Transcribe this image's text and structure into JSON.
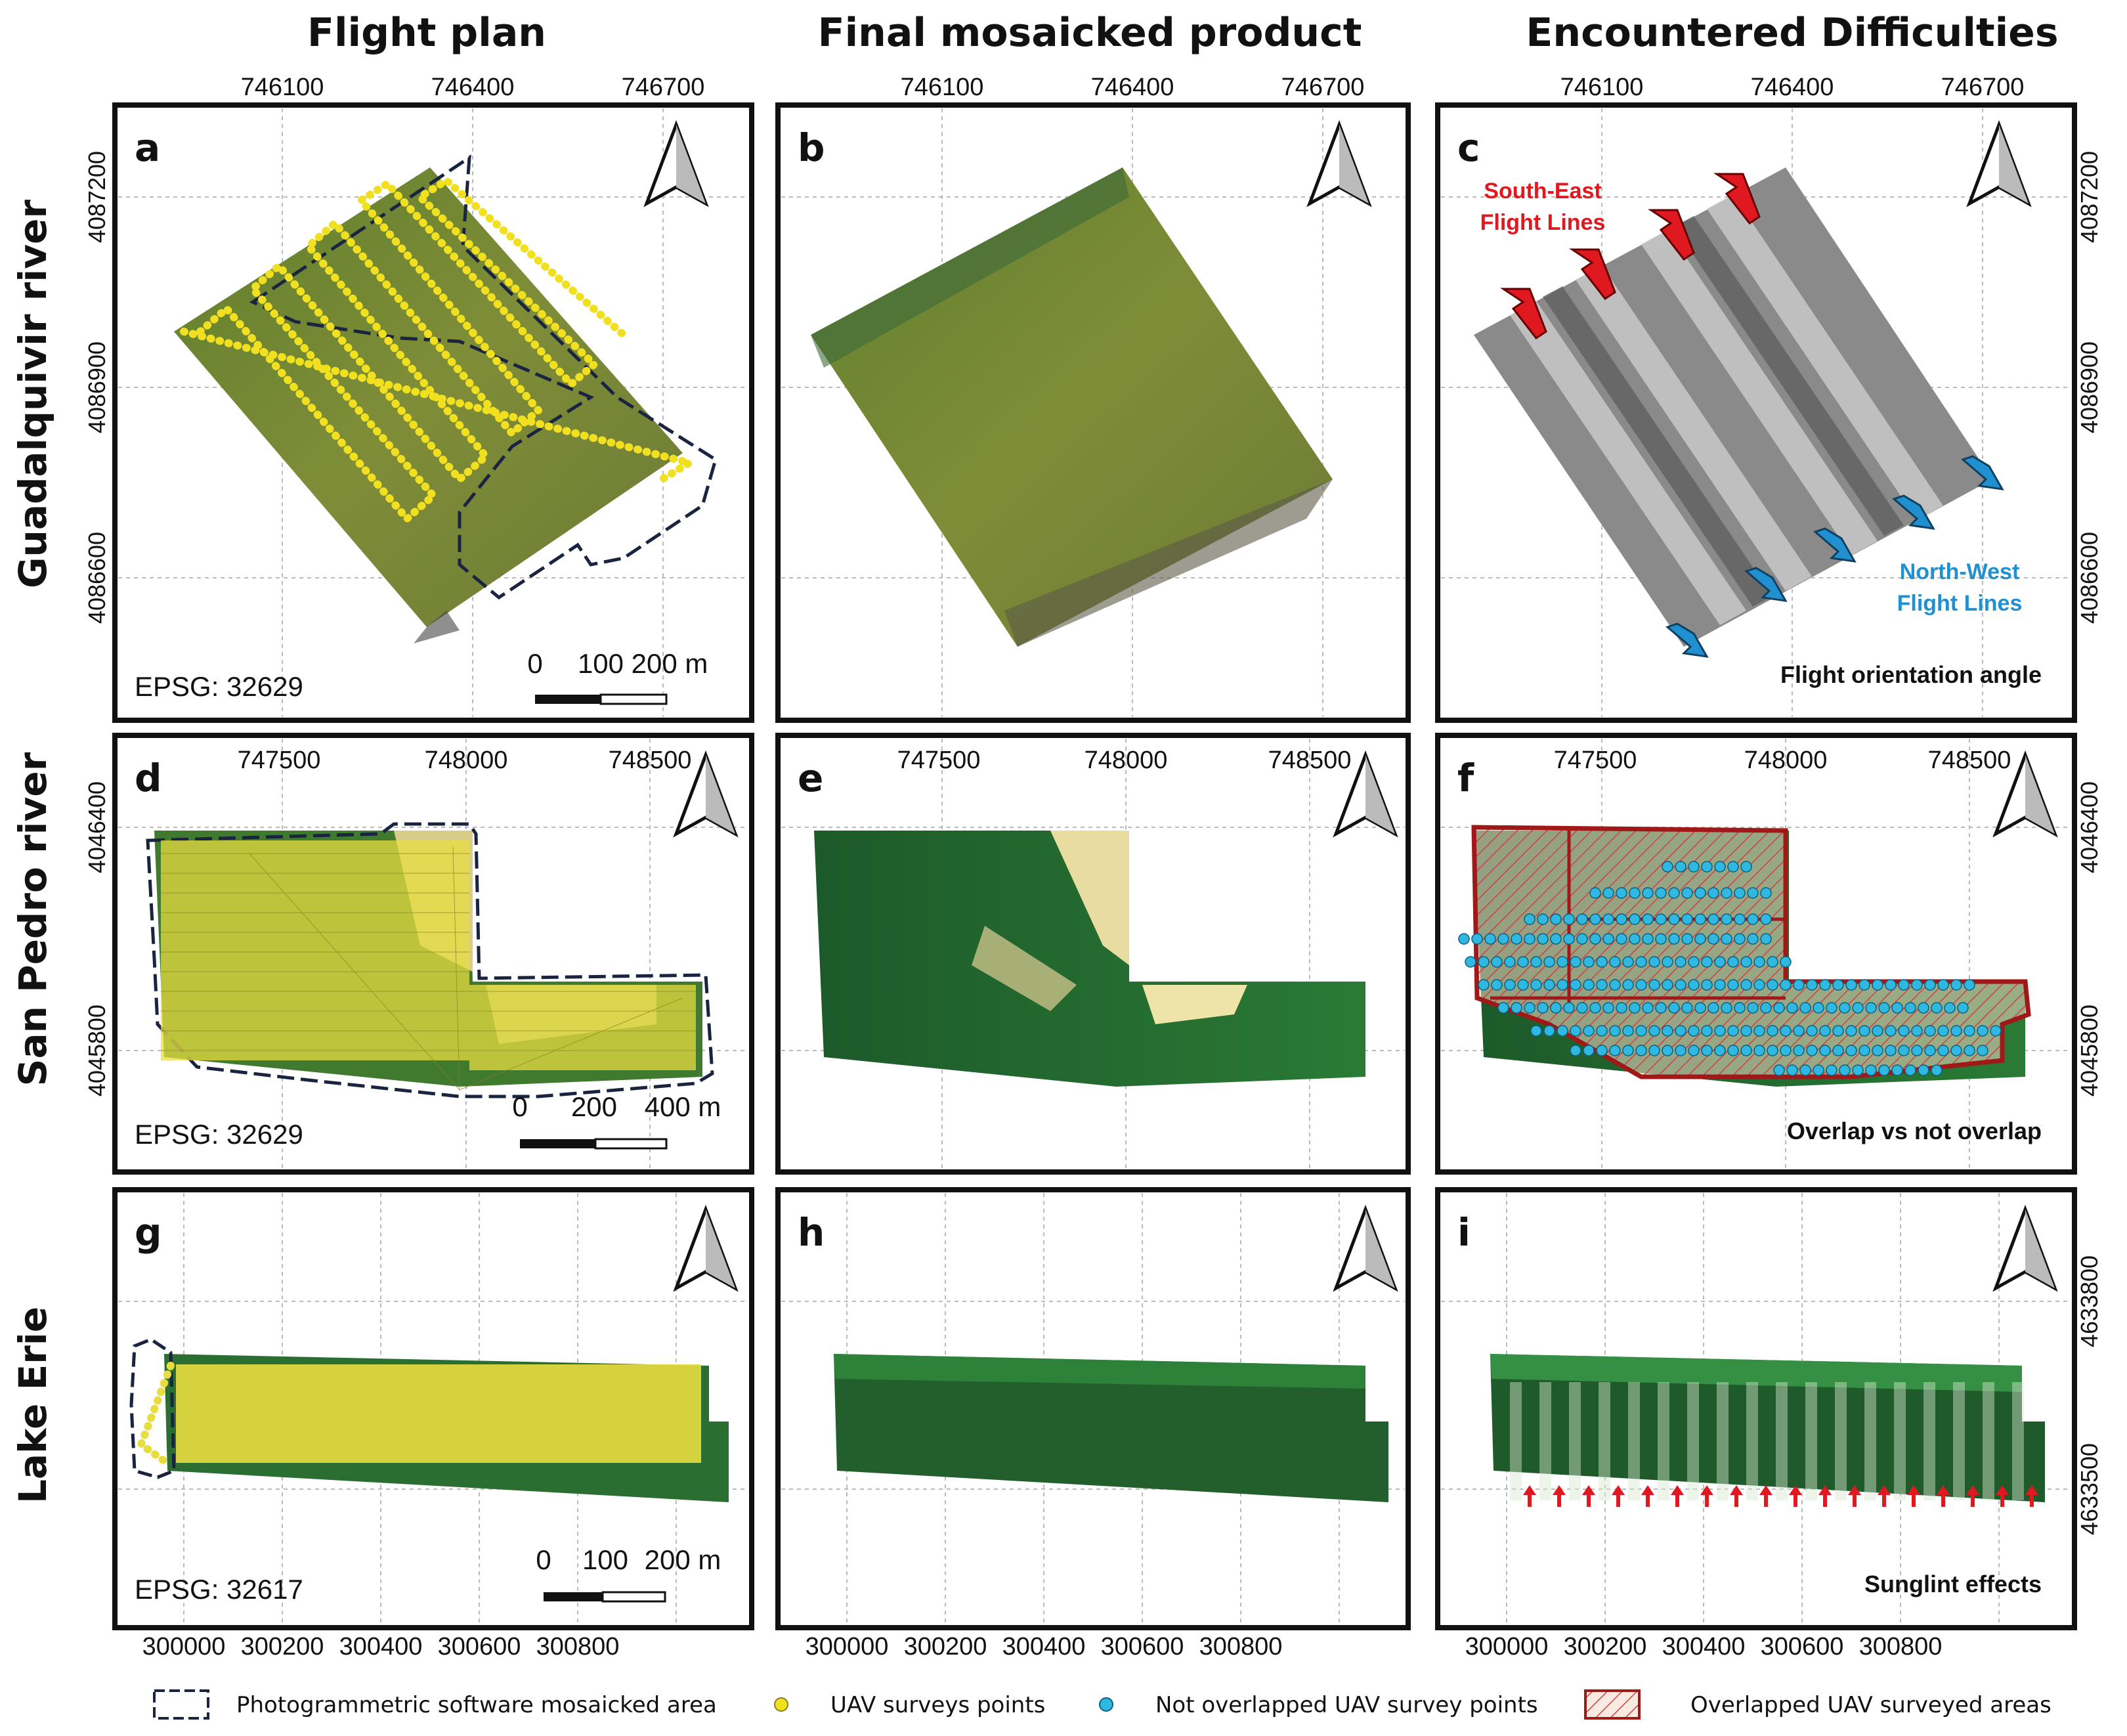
{
  "columns": [
    "Flight plan",
    "Final mosaicked product",
    "Encountered Difficulties"
  ],
  "rows": [
    "Guadalquivir river",
    "San Pedro river",
    "Lake Erie"
  ],
  "panel_letters": [
    "a",
    "b",
    "c",
    "d",
    "e",
    "f",
    "g",
    "h",
    "i"
  ],
  "epsg": [
    "EPSG: 32629",
    "EPSG: 32629",
    "EPSG: 32617"
  ],
  "row1": {
    "x_ticks": [
      "746100",
      "746400",
      "746700"
    ],
    "y_ticks": [
      "4087200",
      "4086900",
      "4086600"
    ],
    "scale": [
      "0",
      "100",
      "200 m"
    ]
  },
  "row2": {
    "x_ticks": [
      "747500",
      "748000",
      "748500"
    ],
    "y_ticks": [
      "4046400",
      "4045800"
    ],
    "scale": [
      "0",
      "200",
      "400 m"
    ]
  },
  "row3": {
    "x_ticks": [
      "300000",
      "300200",
      "300400",
      "300600",
      "300800"
    ],
    "y_ticks": [
      "4633800",
      "4633500"
    ],
    "scale": [
      "0",
      "100",
      "200 m"
    ]
  },
  "annotations": {
    "south_east_1": "South-East",
    "south_east_2": "Flight Lines",
    "north_west_1": "North-West",
    "north_west_2": "Flight Lines",
    "flight_angle": "Flight orientation angle",
    "overlap": "Overlap vs not overlap",
    "sunglint": "Sunglint effects"
  },
  "legend": {
    "mosaicked": "Photogrammetric software mosaicked area",
    "uav_points": "UAV surveys points",
    "not_overlapped": "Not overlapped UAV survey points",
    "overlapped": "Overlapped UAV surveyed areas"
  },
  "colors": {
    "uav_point": "#f0e020",
    "not_overlap_point": "#30b8e0",
    "overlap_border": "#a01818",
    "dashed_border": "#1a2440",
    "red_arrow": "#e01820",
    "blue_arrow": "#2090d0",
    "vegetation": "#6e8a2c"
  }
}
